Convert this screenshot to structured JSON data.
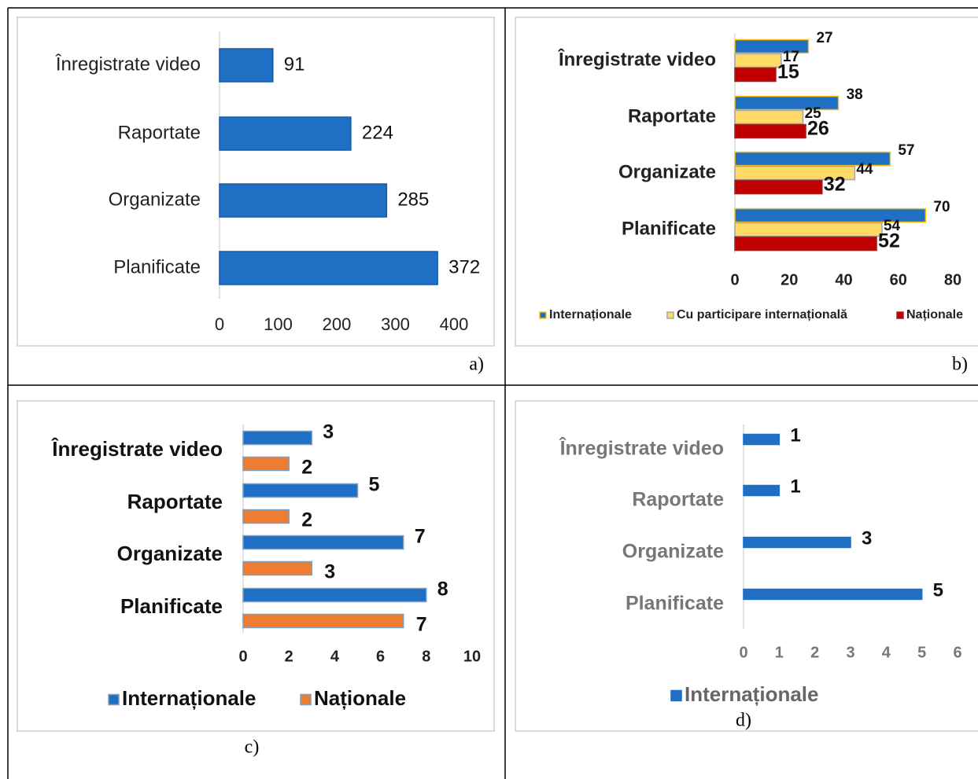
{
  "chart_data": [
    {
      "type": "bar",
      "orientation": "horizontal",
      "panel": "a)",
      "categories": [
        "Înregistrate video",
        "Raportate",
        "Organizate",
        "Planificate"
      ],
      "values": [
        91,
        224,
        285,
        372
      ],
      "color": "#1f6fc5",
      "xlim": [
        0,
        400
      ],
      "xticks": [
        0,
        100,
        200,
        300,
        400
      ]
    },
    {
      "type": "bar",
      "orientation": "horizontal",
      "panel": "b)",
      "categories": [
        "Înregistrate video",
        "Raportate",
        "Organizate",
        "Planificate"
      ],
      "series": [
        {
          "name": "Internaționale",
          "color": "#1f6fc5",
          "edgecolor": "#ffc000",
          "values": [
            27,
            38,
            57,
            70
          ]
        },
        {
          "name": "Cu participare internațională",
          "color": "#ffd966",
          "edgecolor": "#a6a6a6",
          "values": [
            17,
            25,
            44,
            54
          ]
        },
        {
          "name": "Naționale",
          "color": "#c00000",
          "edgecolor": "#a02020",
          "values": [
            15,
            26,
            32,
            52
          ]
        }
      ],
      "xlim": [
        0,
        80
      ],
      "xticks": [
        0,
        20,
        40,
        60,
        80
      ],
      "legend": "bottom"
    },
    {
      "type": "bar",
      "orientation": "horizontal",
      "panel": "c)",
      "categories": [
        "Înregistrate video",
        "Raportate",
        "Organizate",
        "Planificate"
      ],
      "series": [
        {
          "name": "Internaționale",
          "color": "#1f6fc5",
          "edgecolor": "#7f9fbf",
          "values": [
            3,
            5,
            7,
            8
          ]
        },
        {
          "name": "Naționale",
          "color": "#ed7d31",
          "edgecolor": "#7f9fbf",
          "values": [
            2,
            2,
            3,
            7
          ]
        }
      ],
      "xlim": [
        0,
        10
      ],
      "xticks": [
        0,
        2,
        4,
        6,
        8,
        10
      ],
      "legend": "bottom"
    },
    {
      "type": "bar",
      "orientation": "horizontal",
      "panel": "d)",
      "categories": [
        "Înregistrate video",
        "Raportate",
        "Organizate",
        "Planificate"
      ],
      "series": [
        {
          "name": "Internaționale",
          "color": "#1f6fc5",
          "edgecolor": "#1f6fc5",
          "values": [
            1,
            1,
            3,
            5
          ]
        }
      ],
      "xlim": [
        0,
        6
      ],
      "xticks": [
        0,
        1,
        2,
        3,
        4,
        5,
        6
      ],
      "legend": "bottom"
    }
  ]
}
